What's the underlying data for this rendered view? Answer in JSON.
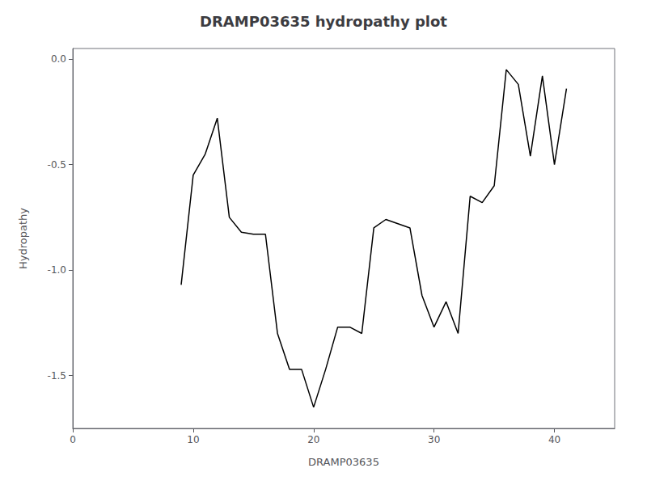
{
  "chart_data": {
    "type": "line",
    "title": "DRAMP03635 hydropathy plot",
    "xlabel": "DRAMP03635",
    "ylabel": "Hydropathy",
    "x": [
      9,
      10,
      11,
      12,
      13,
      14,
      15,
      16,
      17,
      18,
      19,
      20,
      21,
      22,
      23,
      24,
      25,
      26,
      27,
      28,
      29,
      30,
      31,
      32,
      33,
      34,
      35,
      36,
      37,
      38,
      39,
      40,
      41
    ],
    "values": [
      -1.07,
      -0.55,
      -0.45,
      -0.28,
      -0.75,
      -0.82,
      -0.83,
      -0.83,
      -1.3,
      -1.47,
      -1.47,
      -1.65,
      -1.47,
      -1.27,
      -1.27,
      -1.3,
      -0.8,
      -0.76,
      -0.78,
      -0.8,
      -1.12,
      -1.27,
      -1.15,
      -1.3,
      -0.65,
      -0.68,
      -0.6,
      -0.05,
      -0.12,
      -0.46,
      -0.08,
      -0.5,
      -0.14
    ],
    "color": "black",
    "xlim": [
      0,
      45
    ],
    "xticks": [
      0,
      10,
      20,
      30,
      40
    ],
    "ylim": [
      -1.75,
      0.05
    ],
    "yticks": [
      {
        "value": 0.0,
        "label": "0.0"
      },
      -0.5,
      {
        "value": -1.0,
        "label": "-1.0"
      },
      -1.5
    ],
    "grid": false
  }
}
